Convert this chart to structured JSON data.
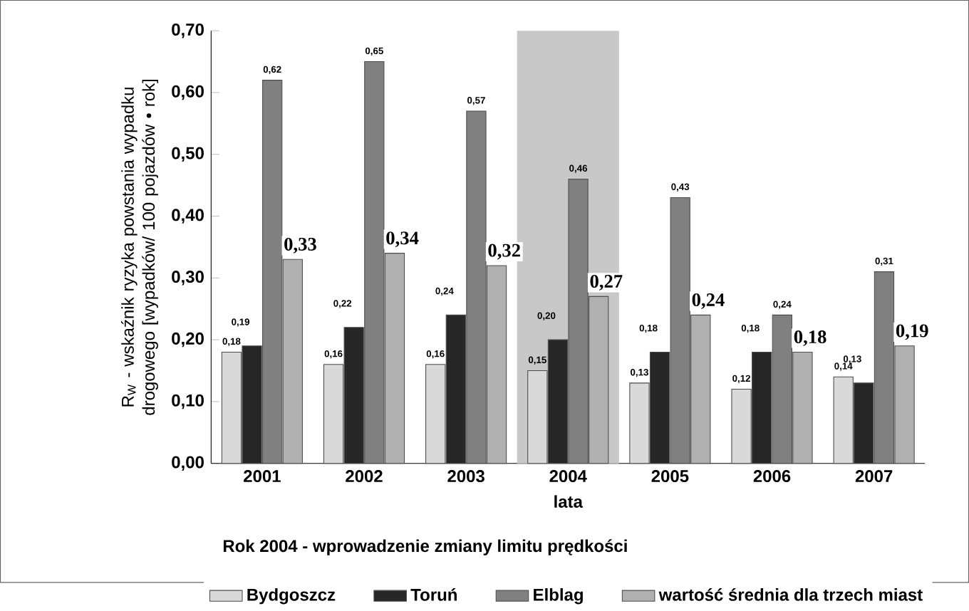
{
  "chart_data": {
    "type": "bar",
    "ylabel": "R$_{W}$ - wskaźnik ryzyka powstania  wypadku drogowego [wypadków/ 100 pojazdów • rok]",
    "xlabel": "lata",
    "categories": [
      "2001",
      "2002",
      "2003",
      "2004",
      "2005",
      "2006",
      "2007"
    ],
    "series": [
      {
        "name": "Bydgoszcz",
        "color": "#d9d9d9",
        "values": [
          0.18,
          0.16,
          0.16,
          0.15,
          0.13,
          0.12,
          0.14
        ],
        "value_labels": [
          "0,18",
          "0,16",
          "0,16",
          "0,15",
          "0,13",
          "0,12",
          "0,14"
        ]
      },
      {
        "name": "Toruń",
        "color": "#262626",
        "values": [
          0.19,
          0.22,
          0.24,
          0.2,
          0.18,
          0.18,
          0.13
        ],
        "value_labels": [
          "0,19",
          "0,22",
          "0,24",
          "0,20",
          "0,18",
          "0,18",
          "0,13"
        ]
      },
      {
        "name": "Elblag",
        "color": "#808080",
        "values": [
          0.62,
          0.65,
          0.57,
          0.46,
          0.43,
          0.24,
          0.31
        ],
        "value_labels": [
          "0,62",
          "0,65",
          "0,57",
          "0,46",
          "0,43",
          "0,24",
          "0,31"
        ]
      },
      {
        "name": "wartość średnia dla trzech miast",
        "color": "#b0b0b0",
        "values": [
          0.33,
          0.34,
          0.32,
          0.27,
          0.24,
          0.18,
          0.19
        ],
        "value_labels": [
          "0,33",
          "0,34",
          "0,32",
          "0,27",
          "0,24",
          "0,18",
          "0,19"
        ]
      }
    ],
    "ylim": [
      0,
      0.7
    ],
    "yticks": [
      {
        "value": 0,
        "label": "0,00"
      },
      {
        "value": 0.1,
        "label": "0,10"
      },
      {
        "value": 0.2,
        "label": "0,20"
      },
      {
        "value": 0.3,
        "label": "0,30"
      },
      {
        "value": 0.4,
        "label": "0,40"
      },
      {
        "value": 0.5,
        "label": "0,50"
      },
      {
        "value": 0.6,
        "label": "0,60"
      },
      {
        "value": 0.7,
        "label": "0,70"
      }
    ],
    "bands": [
      {
        "axis": "x",
        "from": "2004",
        "to": "2004",
        "color": "#c8c8c8"
      }
    ],
    "annotations": [
      "Rok 2004 - wprowadzenie zmiany limitu prędkości"
    ],
    "legend": "bottom",
    "grid": false
  }
}
